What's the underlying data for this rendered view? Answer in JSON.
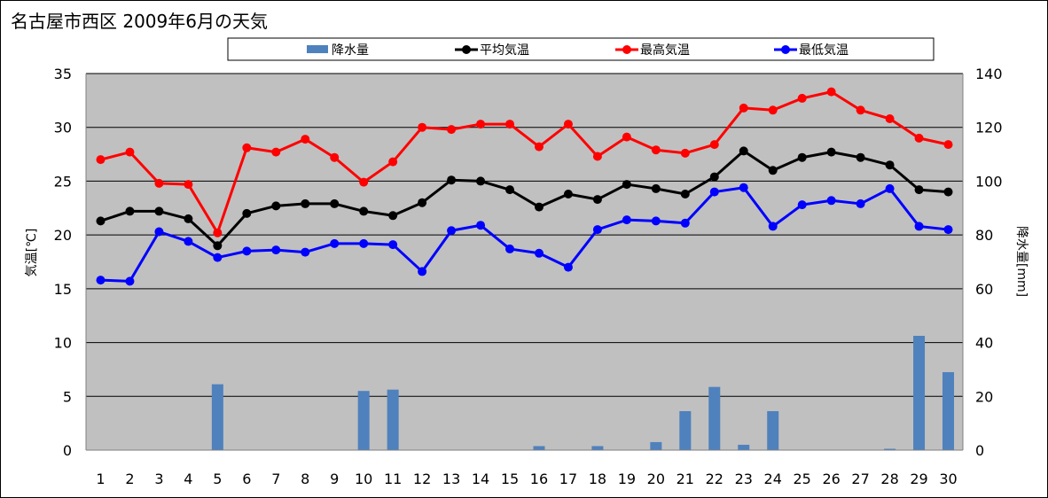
{
  "title": "名古屋市西区 2009年6月の天気",
  "colors": {
    "plot_bg": "#c0c0c0",
    "rain": "#4f81bd",
    "avg": "#000000",
    "high": "#ff0000",
    "low": "#0000ff"
  },
  "chart_data": {
    "type": "bar+line",
    "ylabel_left": "気温[℃]",
    "ylabel_right": "降水量[mm]",
    "ylim_left": [
      0,
      35
    ],
    "yticks_left": [
      "0",
      "5",
      "10",
      "15",
      "20",
      "25",
      "30",
      "35"
    ],
    "ylim_right": [
      0,
      140
    ],
    "yticks_right": [
      "0",
      "20",
      "40",
      "60",
      "80",
      "100",
      "120",
      "140"
    ],
    "grid": true,
    "legend_position": "top",
    "categories": [
      "1",
      "2",
      "3",
      "4",
      "5",
      "6",
      "7",
      "8",
      "9",
      "10",
      "11",
      "12",
      "13",
      "14",
      "15",
      "16",
      "17",
      "18",
      "19",
      "20",
      "21",
      "22",
      "23",
      "24",
      "25",
      "26",
      "27",
      "28",
      "29",
      "30"
    ],
    "series": [
      {
        "name": "降水量",
        "type": "bar",
        "axis": "right",
        "values": [
          0,
          0,
          0,
          0,
          24.5,
          0,
          0,
          0,
          0,
          22,
          22.5,
          0,
          0,
          0,
          0,
          1.5,
          0,
          1.5,
          0,
          3,
          14.5,
          23.5,
          2,
          14.5,
          0,
          0,
          0,
          0.5,
          42.5,
          29
        ]
      },
      {
        "name": "平均気温",
        "type": "line",
        "axis": "left",
        "values": [
          21.3,
          22.2,
          22.2,
          21.5,
          19.0,
          22.0,
          22.7,
          22.9,
          22.9,
          22.2,
          21.8,
          23.0,
          25.1,
          25.0,
          24.2,
          22.6,
          23.8,
          23.3,
          24.7,
          24.3,
          23.8,
          25.4,
          27.8,
          26.0,
          27.2,
          27.7,
          27.2,
          26.5,
          24.2,
          24.0
        ]
      },
      {
        "name": "最高気温",
        "type": "line",
        "axis": "left",
        "values": [
          27.0,
          27.7,
          24.8,
          24.7,
          20.2,
          28.1,
          27.7,
          28.9,
          27.2,
          24.9,
          26.8,
          30.0,
          29.8,
          30.3,
          30.3,
          28.2,
          30.3,
          27.3,
          29.1,
          27.9,
          27.6,
          28.4,
          31.8,
          31.6,
          32.7,
          33.3,
          31.6,
          30.8,
          29.0,
          28.4
        ]
      },
      {
        "name": "最低気温",
        "type": "line",
        "axis": "left",
        "values": [
          15.8,
          15.7,
          20.3,
          19.4,
          17.9,
          18.5,
          18.6,
          18.4,
          19.2,
          19.2,
          19.1,
          16.6,
          20.4,
          20.9,
          18.7,
          18.3,
          17.0,
          20.5,
          21.4,
          21.3,
          21.1,
          24.0,
          24.4,
          20.8,
          22.8,
          23.2,
          22.9,
          24.3,
          20.8,
          20.5
        ]
      }
    ]
  }
}
